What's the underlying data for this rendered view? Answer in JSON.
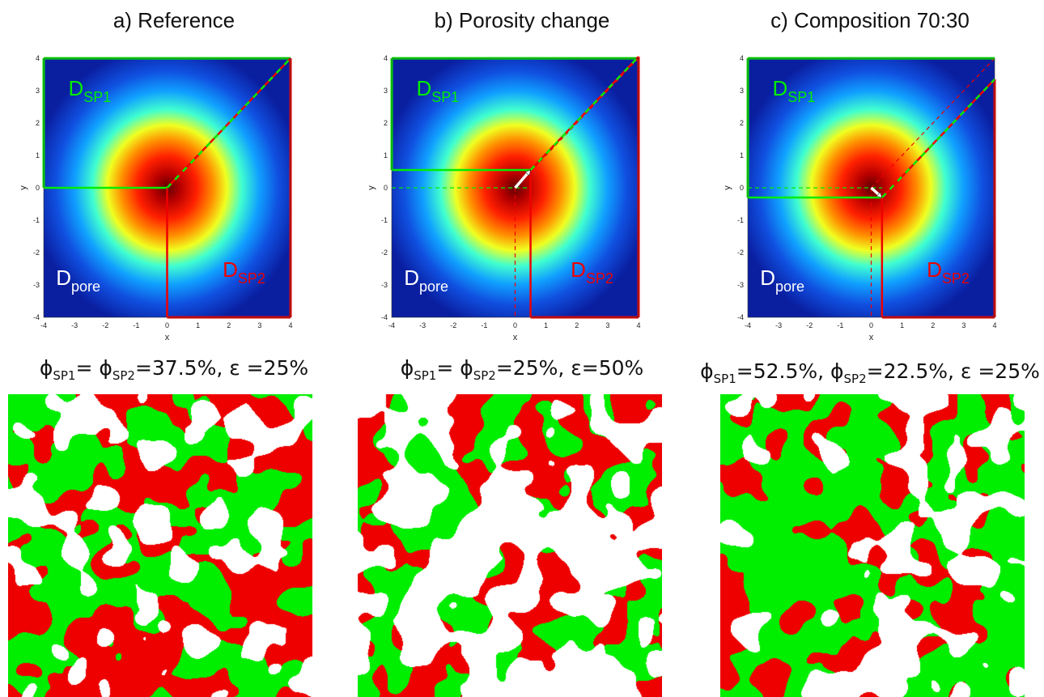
{
  "panels": [
    {
      "title": "a) Reference",
      "d_sp1_main": "D",
      "d_sp1_sub": "SP1",
      "d_sp2_main": "D",
      "d_sp2_sub": "SP2",
      "d_pore_main": "D",
      "d_pore_sub": "pore",
      "xlabel": "x",
      "ylabel": "y",
      "xticks": [
        "-4",
        "-3",
        "-2",
        "-1",
        "0",
        "1",
        "2",
        "3",
        "4"
      ],
      "yticks": [
        "4",
        "3",
        "2",
        "1",
        "0",
        "-1",
        "-2",
        "-3",
        "-4"
      ],
      "caption": {
        "p1": "ϕ",
        "s1": "SP1",
        "t1": "= ϕ",
        "s2": "SP2",
        "t2": "=37.5%, ε =25%"
      },
      "split_point": [
        0,
        0
      ],
      "green_fraction": 0.5,
      "white_fraction": 0.25,
      "colors": {
        "sp1": "#00ee00",
        "sp2": "#ee0000",
        "pore": "#ffffff"
      }
    },
    {
      "title": "b) Porosity change",
      "d_sp1_main": "D",
      "d_sp1_sub": "SP1",
      "d_sp2_main": "D",
      "d_sp2_sub": "SP2",
      "d_pore_main": "D",
      "d_pore_sub": "pore",
      "xlabel": "x",
      "ylabel": "y",
      "xticks": [
        "-4",
        "-3",
        "-2",
        "-1",
        "0",
        "1",
        "2",
        "3",
        "4"
      ],
      "yticks": [
        "4",
        "3",
        "2",
        "1",
        "0",
        "-1",
        "-2",
        "-3",
        "-4"
      ],
      "caption": {
        "p1": "ϕ",
        "s1": "SP1",
        "t1": "= ϕ",
        "s2": "SP2",
        "t2": "=25%, ε=50%"
      },
      "split_point": [
        0.5,
        0.55
      ],
      "green_fraction": 0.5,
      "white_fraction": 0.5,
      "colors": {
        "sp1": "#00ee00",
        "sp2": "#ee0000",
        "pore": "#ffffff"
      }
    },
    {
      "title": "c) Composition 70:30",
      "d_sp1_main": "D",
      "d_sp1_sub": "SP1",
      "d_sp2_main": "D",
      "d_sp2_sub": "SP2",
      "d_pore_main": "D",
      "d_pore_sub": "pore",
      "xlabel": "x",
      "ylabel": "y",
      "xticks": [
        "-4",
        "-3",
        "-2",
        "-1",
        "0",
        "1",
        "2",
        "3",
        "4"
      ],
      "yticks": [
        "4",
        "3",
        "2",
        "1",
        "0",
        "-1",
        "-2",
        "-3",
        "-4"
      ],
      "caption": {
        "p1": "ϕ",
        "s1": "SP1",
        "t1": "=52.5%, ϕ",
        "s2": "SP2",
        "t2": "=22.5%, ε =25%"
      },
      "split_point": [
        0.35,
        -0.3
      ],
      "green_fraction": 0.7,
      "white_fraction": 0.25,
      "colors": {
        "sp1": "#00ee00",
        "sp2": "#ee0000",
        "pore": "#ffffff"
      }
    }
  ]
}
